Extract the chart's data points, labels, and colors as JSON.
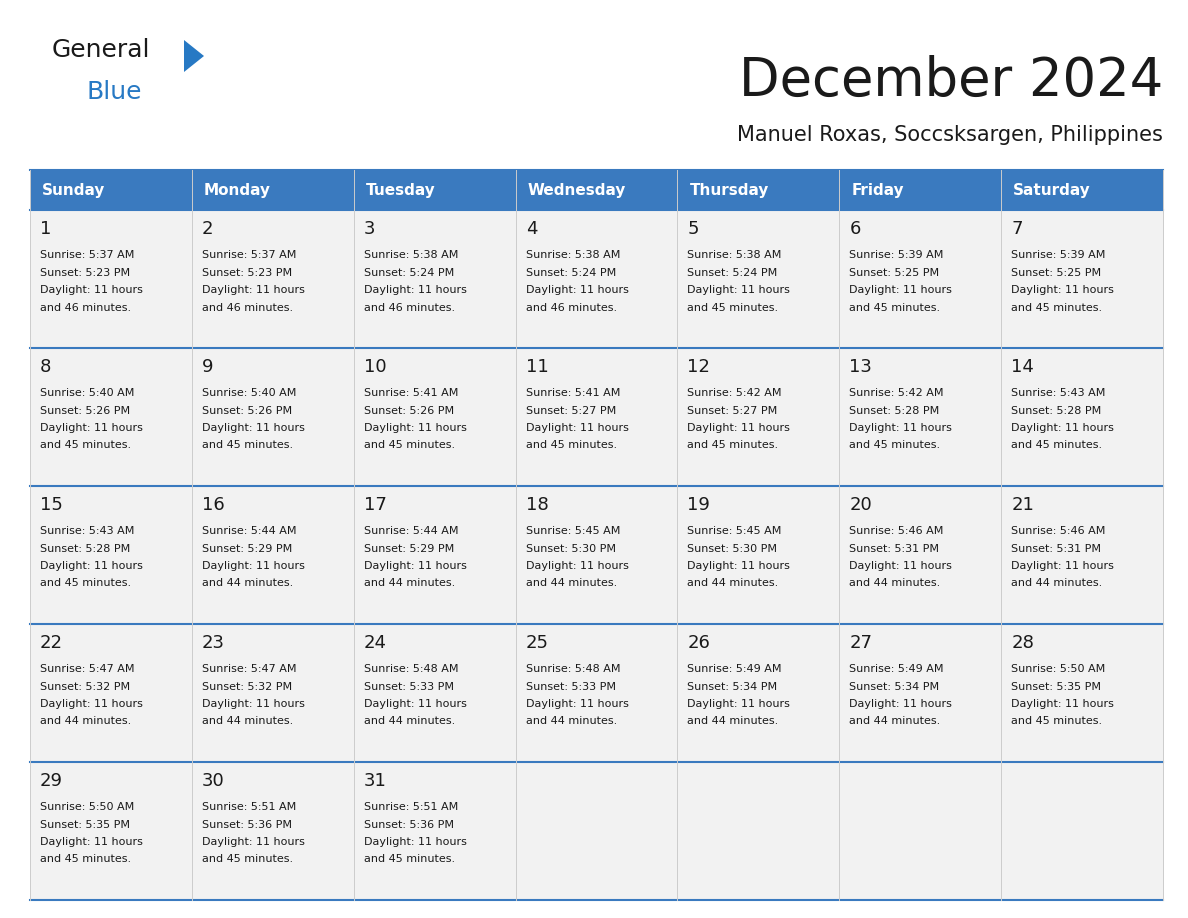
{
  "title": "December 2024",
  "subtitle": "Manuel Roxas, Soccsksargen, Philippines",
  "header_bg_color": "#3a7abf",
  "header_text_color": "#ffffff",
  "day_names": [
    "Sunday",
    "Monday",
    "Tuesday",
    "Wednesday",
    "Thursday",
    "Friday",
    "Saturday"
  ],
  "days": [
    {
      "day": 1,
      "col": 0,
      "row": 0,
      "sunrise": "5:37 AM",
      "sunset": "5:23 PM",
      "daylight_h": "11 hours",
      "daylight_m": "and 46 minutes."
    },
    {
      "day": 2,
      "col": 1,
      "row": 0,
      "sunrise": "5:37 AM",
      "sunset": "5:23 PM",
      "daylight_h": "11 hours",
      "daylight_m": "and 46 minutes."
    },
    {
      "day": 3,
      "col": 2,
      "row": 0,
      "sunrise": "5:38 AM",
      "sunset": "5:24 PM",
      "daylight_h": "11 hours",
      "daylight_m": "and 46 minutes."
    },
    {
      "day": 4,
      "col": 3,
      "row": 0,
      "sunrise": "5:38 AM",
      "sunset": "5:24 PM",
      "daylight_h": "11 hours",
      "daylight_m": "and 46 minutes."
    },
    {
      "day": 5,
      "col": 4,
      "row": 0,
      "sunrise": "5:38 AM",
      "sunset": "5:24 PM",
      "daylight_h": "11 hours",
      "daylight_m": "and 45 minutes."
    },
    {
      "day": 6,
      "col": 5,
      "row": 0,
      "sunrise": "5:39 AM",
      "sunset": "5:25 PM",
      "daylight_h": "11 hours",
      "daylight_m": "and 45 minutes."
    },
    {
      "day": 7,
      "col": 6,
      "row": 0,
      "sunrise": "5:39 AM",
      "sunset": "5:25 PM",
      "daylight_h": "11 hours",
      "daylight_m": "and 45 minutes."
    },
    {
      "day": 8,
      "col": 0,
      "row": 1,
      "sunrise": "5:40 AM",
      "sunset": "5:26 PM",
      "daylight_h": "11 hours",
      "daylight_m": "and 45 minutes."
    },
    {
      "day": 9,
      "col": 1,
      "row": 1,
      "sunrise": "5:40 AM",
      "sunset": "5:26 PM",
      "daylight_h": "11 hours",
      "daylight_m": "and 45 minutes."
    },
    {
      "day": 10,
      "col": 2,
      "row": 1,
      "sunrise": "5:41 AM",
      "sunset": "5:26 PM",
      "daylight_h": "11 hours",
      "daylight_m": "and 45 minutes."
    },
    {
      "day": 11,
      "col": 3,
      "row": 1,
      "sunrise": "5:41 AM",
      "sunset": "5:27 PM",
      "daylight_h": "11 hours",
      "daylight_m": "and 45 minutes."
    },
    {
      "day": 12,
      "col": 4,
      "row": 1,
      "sunrise": "5:42 AM",
      "sunset": "5:27 PM",
      "daylight_h": "11 hours",
      "daylight_m": "and 45 minutes."
    },
    {
      "day": 13,
      "col": 5,
      "row": 1,
      "sunrise": "5:42 AM",
      "sunset": "5:28 PM",
      "daylight_h": "11 hours",
      "daylight_m": "and 45 minutes."
    },
    {
      "day": 14,
      "col": 6,
      "row": 1,
      "sunrise": "5:43 AM",
      "sunset": "5:28 PM",
      "daylight_h": "11 hours",
      "daylight_m": "and 45 minutes."
    },
    {
      "day": 15,
      "col": 0,
      "row": 2,
      "sunrise": "5:43 AM",
      "sunset": "5:28 PM",
      "daylight_h": "11 hours",
      "daylight_m": "and 45 minutes."
    },
    {
      "day": 16,
      "col": 1,
      "row": 2,
      "sunrise": "5:44 AM",
      "sunset": "5:29 PM",
      "daylight_h": "11 hours",
      "daylight_m": "and 44 minutes."
    },
    {
      "day": 17,
      "col": 2,
      "row": 2,
      "sunrise": "5:44 AM",
      "sunset": "5:29 PM",
      "daylight_h": "11 hours",
      "daylight_m": "and 44 minutes."
    },
    {
      "day": 18,
      "col": 3,
      "row": 2,
      "sunrise": "5:45 AM",
      "sunset": "5:30 PM",
      "daylight_h": "11 hours",
      "daylight_m": "and 44 minutes."
    },
    {
      "day": 19,
      "col": 4,
      "row": 2,
      "sunrise": "5:45 AM",
      "sunset": "5:30 PM",
      "daylight_h": "11 hours",
      "daylight_m": "and 44 minutes."
    },
    {
      "day": 20,
      "col": 5,
      "row": 2,
      "sunrise": "5:46 AM",
      "sunset": "5:31 PM",
      "daylight_h": "11 hours",
      "daylight_m": "and 44 minutes."
    },
    {
      "day": 21,
      "col": 6,
      "row": 2,
      "sunrise": "5:46 AM",
      "sunset": "5:31 PM",
      "daylight_h": "11 hours",
      "daylight_m": "and 44 minutes."
    },
    {
      "day": 22,
      "col": 0,
      "row": 3,
      "sunrise": "5:47 AM",
      "sunset": "5:32 PM",
      "daylight_h": "11 hours",
      "daylight_m": "and 44 minutes."
    },
    {
      "day": 23,
      "col": 1,
      "row": 3,
      "sunrise": "5:47 AM",
      "sunset": "5:32 PM",
      "daylight_h": "11 hours",
      "daylight_m": "and 44 minutes."
    },
    {
      "day": 24,
      "col": 2,
      "row": 3,
      "sunrise": "5:48 AM",
      "sunset": "5:33 PM",
      "daylight_h": "11 hours",
      "daylight_m": "and 44 minutes."
    },
    {
      "day": 25,
      "col": 3,
      "row": 3,
      "sunrise": "5:48 AM",
      "sunset": "5:33 PM",
      "daylight_h": "11 hours",
      "daylight_m": "and 44 minutes."
    },
    {
      "day": 26,
      "col": 4,
      "row": 3,
      "sunrise": "5:49 AM",
      "sunset": "5:34 PM",
      "daylight_h": "11 hours",
      "daylight_m": "and 44 minutes."
    },
    {
      "day": 27,
      "col": 5,
      "row": 3,
      "sunrise": "5:49 AM",
      "sunset": "5:34 PM",
      "daylight_h": "11 hours",
      "daylight_m": "and 44 minutes."
    },
    {
      "day": 28,
      "col": 6,
      "row": 3,
      "sunrise": "5:50 AM",
      "sunset": "5:35 PM",
      "daylight_h": "11 hours",
      "daylight_m": "and 45 minutes."
    },
    {
      "day": 29,
      "col": 0,
      "row": 4,
      "sunrise": "5:50 AM",
      "sunset": "5:35 PM",
      "daylight_h": "11 hours",
      "daylight_m": "and 45 minutes."
    },
    {
      "day": 30,
      "col": 1,
      "row": 4,
      "sunrise": "5:51 AM",
      "sunset": "5:36 PM",
      "daylight_h": "11 hours",
      "daylight_m": "and 45 minutes."
    },
    {
      "day": 31,
      "col": 2,
      "row": 4,
      "sunrise": "5:51 AM",
      "sunset": "5:36 PM",
      "daylight_h": "11 hours",
      "daylight_m": "and 45 minutes."
    }
  ],
  "logo_color1": "#1a1a1a",
  "logo_color2": "#2779c4",
  "logo_triangle_color": "#2779c4",
  "title_color": "#1a1a1a",
  "subtitle_color": "#1a1a1a",
  "cell_bg_color": "#f2f2f2",
  "row_line_color": "#3a7abf",
  "col_line_color": "#cccccc",
  "bottom_line_color": "#3a7abf"
}
